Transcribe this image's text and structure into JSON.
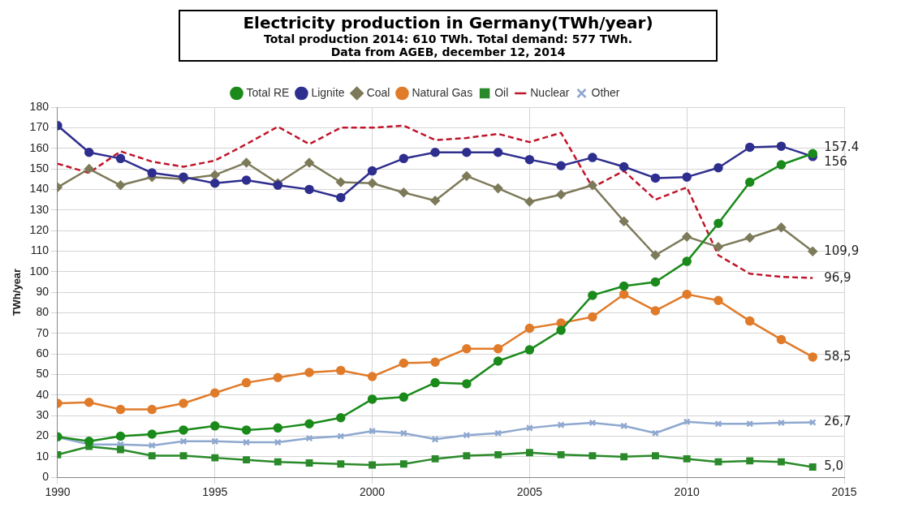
{
  "chart_data": {
    "type": "line",
    "title": "Electricity production in Germany(TWh/year)",
    "subtitle": "Total production 2014: 610 TWh. Total demand: 577 TWh.",
    "annotations": [
      "Data from AGEB, december 12, 2014"
    ],
    "ylabel": "TWh/year",
    "x": [
      1990,
      1991,
      1992,
      1993,
      1994,
      1995,
      1996,
      1997,
      1998,
      1999,
      2000,
      2001,
      2002,
      2003,
      2004,
      2005,
      2006,
      2007,
      2008,
      2009,
      2010,
      2011,
      2012,
      2013,
      2014
    ],
    "xlim": [
      1990,
      2015
    ],
    "xticks": [
      1990,
      1995,
      2000,
      2005,
      2010,
      2015
    ],
    "ylim": [
      0,
      180
    ],
    "yticks": [
      0,
      10,
      20,
      30,
      40,
      50,
      60,
      70,
      80,
      90,
      100,
      110,
      120,
      130,
      140,
      150,
      160,
      170,
      180
    ],
    "grid": true,
    "legend": "top",
    "series": [
      {
        "name": "Total RE",
        "color": "#1a8a1a",
        "marker": "circle",
        "values": [
          19.7,
          17.5,
          20,
          21,
          23,
          25,
          23,
          24,
          26,
          29,
          38,
          39,
          46,
          45.5,
          56.5,
          62,
          71.5,
          88.5,
          93,
          95,
          105,
          123.5,
          143.5,
          152,
          157.4
        ],
        "value_labels": [
          null,
          null,
          null,
          null,
          null,
          null,
          null,
          null,
          null,
          null,
          null,
          null,
          null,
          null,
          null,
          null,
          null,
          null,
          null,
          null,
          null,
          null,
          null,
          null,
          "157.4"
        ]
      },
      {
        "name": "Lignite",
        "color": "#2e2e8e",
        "marker": "circle",
        "values": [
          171,
          158,
          155,
          148,
          146,
          143,
          144.5,
          142,
          140,
          136,
          149,
          155,
          158,
          158,
          158,
          154.5,
          151.5,
          155.5,
          151,
          145.5,
          146,
          150.5,
          160.5,
          161,
          156
        ],
        "value_labels": [
          null,
          null,
          null,
          null,
          null,
          null,
          null,
          null,
          null,
          null,
          null,
          null,
          null,
          null,
          null,
          null,
          null,
          null,
          null,
          null,
          null,
          null,
          null,
          null,
          "156"
        ]
      },
      {
        "name": "Coal",
        "color": "#7d7a5a",
        "marker": "diamond",
        "values": [
          141,
          150,
          142,
          146,
          145,
          147,
          153,
          143,
          153,
          143.5,
          143,
          138.5,
          134.5,
          146.5,
          140.5,
          134,
          137.5,
          142,
          124.5,
          108,
          117,
          112,
          116.5,
          121.5,
          109.9
        ],
        "value_labels": [
          null,
          null,
          null,
          null,
          null,
          null,
          null,
          null,
          null,
          null,
          null,
          null,
          null,
          null,
          null,
          null,
          null,
          null,
          null,
          null,
          null,
          null,
          null,
          null,
          "109,9"
        ]
      },
      {
        "name": "Natural Gas",
        "color": "#e07b2a",
        "marker": "circle",
        "values": [
          36,
          36.5,
          33,
          33,
          36,
          41,
          46,
          48.5,
          51,
          52,
          49,
          55.5,
          56,
          62.5,
          62.5,
          72.5,
          75,
          78,
          89,
          81,
          89,
          86,
          76,
          67,
          58.5
        ],
        "value_labels": [
          null,
          null,
          null,
          null,
          null,
          null,
          null,
          null,
          null,
          null,
          null,
          null,
          null,
          null,
          null,
          null,
          null,
          null,
          null,
          null,
          null,
          null,
          null,
          null,
          "58,5"
        ]
      },
      {
        "name": "Oil",
        "color": "#2a8a2a",
        "marker": "square",
        "values": [
          11,
          15,
          13.5,
          10.5,
          10.5,
          9.5,
          8.5,
          7.5,
          7,
          6.5,
          6,
          6.5,
          9,
          10.5,
          11,
          12,
          11,
          10.5,
          10,
          10.5,
          9,
          7.5,
          8,
          7.5,
          5.0
        ],
        "value_labels": [
          null,
          null,
          null,
          null,
          null,
          null,
          null,
          null,
          null,
          null,
          null,
          null,
          null,
          null,
          null,
          null,
          null,
          null,
          null,
          null,
          null,
          null,
          null,
          null,
          "5,0"
        ]
      },
      {
        "name": "Nuclear",
        "color": "#c0142a",
        "marker": "none",
        "line_style": "dashed",
        "values": [
          152.5,
          148,
          158.5,
          153.5,
          151,
          154,
          162,
          170.5,
          162,
          170,
          170,
          171,
          164,
          165,
          167,
          163,
          167.5,
          141,
          149,
          135,
          141,
          108,
          99,
          97.5,
          96.9
        ],
        "value_labels": [
          null,
          null,
          null,
          null,
          null,
          null,
          null,
          null,
          null,
          null,
          null,
          null,
          null,
          null,
          null,
          null,
          null,
          null,
          null,
          null,
          null,
          null,
          null,
          null,
          "96,9"
        ]
      },
      {
        "name": "Other",
        "color": "#8fa8d0",
        "marker": "cross",
        "values": [
          19.5,
          16,
          16,
          15.5,
          17.5,
          17.5,
          17,
          17,
          19,
          20,
          22.5,
          21.5,
          18.5,
          20.5,
          21.5,
          24,
          25.5,
          26.5,
          25,
          21.5,
          27,
          26,
          26,
          26.5,
          26.7
        ],
        "value_labels": [
          null,
          null,
          null,
          null,
          null,
          null,
          null,
          null,
          null,
          null,
          null,
          null,
          null,
          null,
          null,
          null,
          null,
          null,
          null,
          null,
          null,
          null,
          null,
          null,
          "26,7"
        ]
      }
    ]
  }
}
